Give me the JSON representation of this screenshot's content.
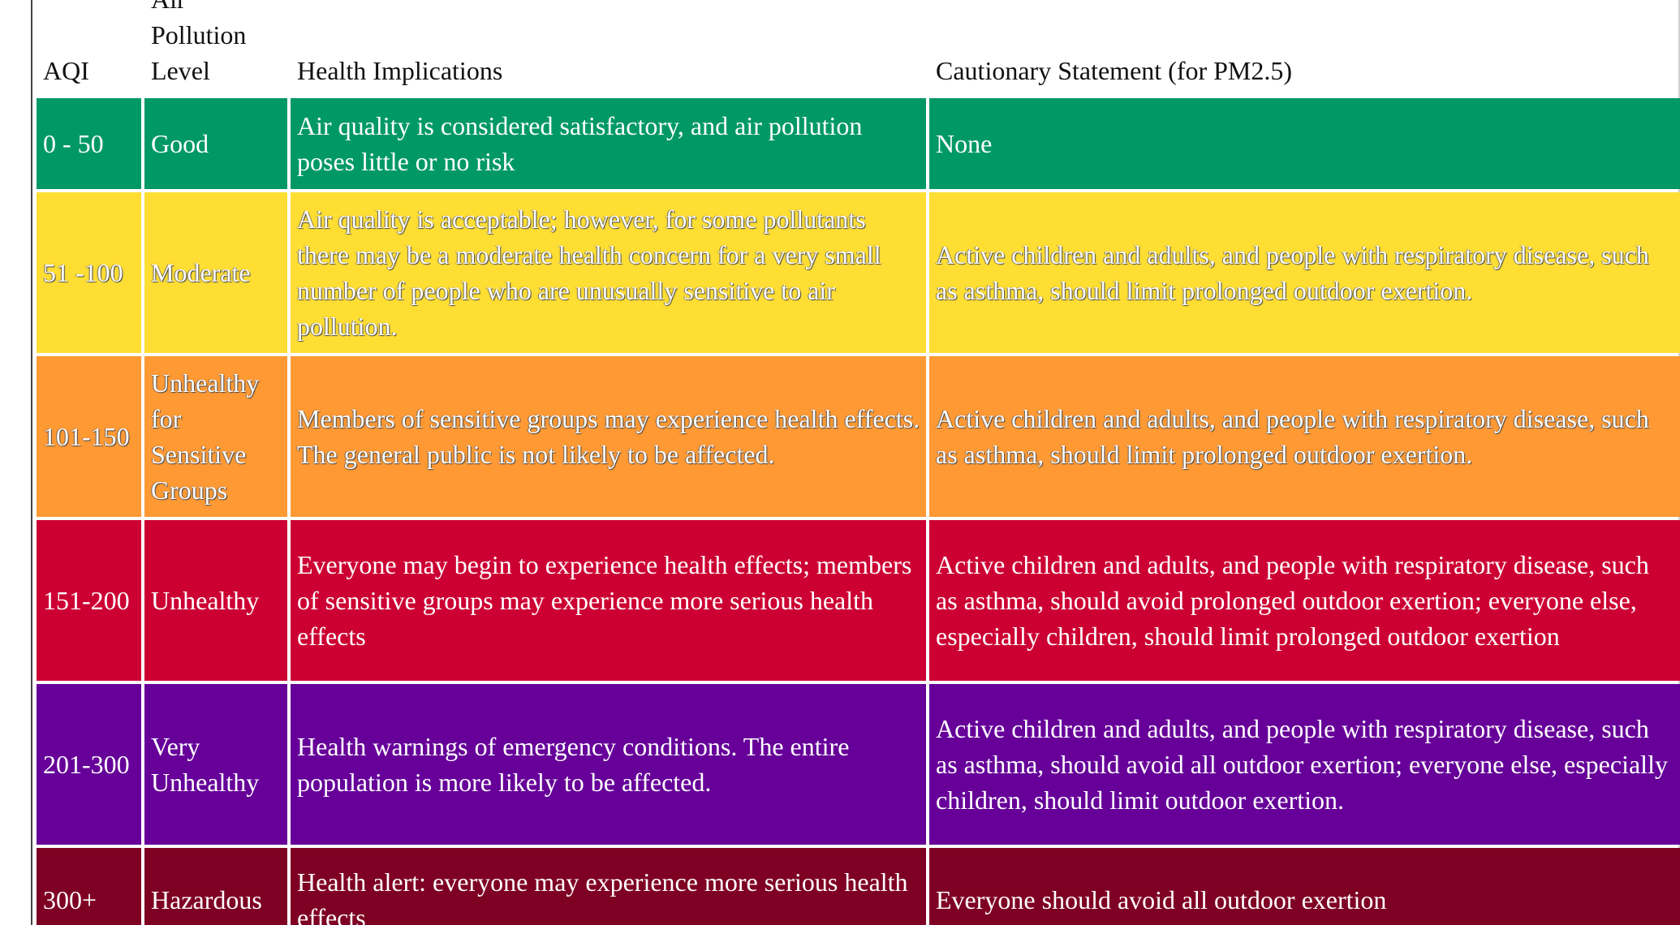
{
  "table": {
    "headers": [
      "AQI",
      "Air Pollution Level",
      "Health Implications",
      "Cautionary Statement (for PM2.5)"
    ],
    "rows": [
      {
        "aqi": "0 - 50",
        "level": "Good",
        "implications": "Air quality is considered satisfactory, and air pollution poses little or no risk",
        "caution": "None",
        "color": "#009966"
      },
      {
        "aqi": "51 -100",
        "level": "Moderate",
        "implications": "Air quality is acceptable; however, for some pollutants there may be a moderate health concern for a very small number of people who are unusually sensitive to air pollution.",
        "caution": "Active children and adults, and people with respiratory disease, such as asthma, should limit prolonged outdoor exertion.",
        "color": "#ffde33"
      },
      {
        "aqi": "101-150",
        "level": "Unhealthy for Sensitive Groups",
        "implications": "Members of sensitive groups may experience health effects. The general public is not likely to be affected.",
        "caution": "Active children and adults, and people with respiratory disease, such as asthma, should limit prolonged outdoor exertion.",
        "color": "#ff9933"
      },
      {
        "aqi": "151-200",
        "level": "Unhealthy",
        "implications": "Everyone may begin to experience health effects; members of sensitive groups may experience more serious health effects",
        "caution": "Active children and adults, and people with respiratory disease, such as asthma, should avoid prolonged outdoor exertion; everyone else, especially children, should limit prolonged outdoor exertion",
        "color": "#cc0033"
      },
      {
        "aqi": "201-300",
        "level": "Very Unhealthy",
        "implications": "Health warnings of emergency conditions. The entire population is more likely to be affected.",
        "caution": "Active children and adults, and people with respiratory disease, such as asthma, should avoid all outdoor exertion; everyone else, especially children, should limit outdoor exertion.",
        "color": "#660099"
      },
      {
        "aqi": "300+",
        "level": "Hazardous",
        "implications": "Health alert: everyone may experience more serious health effects",
        "caution": "Everyone should avoid all outdoor exertion",
        "color": "#7e0023"
      }
    ]
  }
}
